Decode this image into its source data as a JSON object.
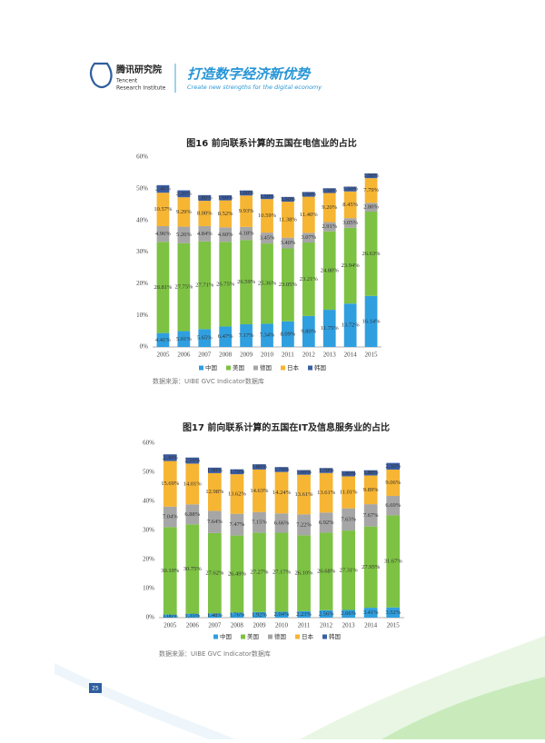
{
  "header": {
    "org_cn": "腾讯研究院",
    "org_en_1": "Tencent",
    "org_en_2": "Research Institute",
    "slogan": "打造数字经济新优势",
    "slogan_en": "Create new strengths for the digital economy"
  },
  "page_number": "25",
  "chart_data": [
    {
      "type": "stacked_bar",
      "title": "图16  前向联系计算的五国在电信业的占比",
      "note": "数据来源：UIBE GVC Indicator数据库",
      "categories": [
        "2005",
        "2006",
        "2007",
        "2008",
        "2009",
        "2010",
        "2011",
        "2012",
        "2013",
        "2014",
        "2015"
      ],
      "ylim": [
        0,
        60
      ],
      "yticks": [
        {
          "value": 0,
          "label": "0%"
        },
        {
          "value": 10,
          "label": "10%"
        },
        {
          "value": 20,
          "label": "20%"
        },
        {
          "value": 30,
          "label": "30%"
        },
        {
          "value": 40,
          "label": "40%"
        },
        {
          "value": 50,
          "label": "50%"
        },
        {
          "value": 60,
          "label": "60%"
        }
      ],
      "series": [
        {
          "name": "中国",
          "color": "#2f9fe0",
          "values": [
            4.41,
            5.01,
            5.65,
            6.47,
            7.17,
            7.34,
            8.09,
            9.8,
            11.75,
            13.72,
            16.14
          ],
          "value_labels": [
            "4.41%",
            "5.01%",
            "5.65%",
            "6.47%",
            "7.17%",
            "7.34%",
            "8.09%",
            "9.80%",
            "11.75%",
            "13.72%",
            "16.14%"
          ]
        },
        {
          "name": "美国",
          "color": "#7dc243",
          "values": [
            28.81,
            27.75,
            27.71,
            26.75,
            26.59,
            25.36,
            23.05,
            23.21,
            24.8,
            23.94,
            26.63
          ],
          "value_labels": [
            "28.81%",
            "27.75%",
            "27.71%",
            "26.75%",
            "26.59%",
            "25.36%",
            "23.05%",
            "23.21%",
            "24.80%",
            "23.94%",
            "26.63%"
          ]
        },
        {
          "name": "德国",
          "color": "#a6a6a6",
          "values": [
            4.96,
            5.26,
            4.84,
            4.6,
            4.18,
            3.45,
            3.4,
            3.07,
            2.91,
            3.05,
            2.8
          ],
          "value_labels": [
            "4.96%",
            "5.26%",
            "4.84%",
            "4.60%",
            "4.18%",
            "3.45%",
            "3.40%",
            "3.07%",
            "2.91%",
            "3.05%",
            "2.80%"
          ]
        },
        {
          "name": "日本",
          "color": "#f6b533",
          "values": [
            10.57,
            9.29,
            8.0,
            8.52,
            9.93,
            10.59,
            11.38,
            11.4,
            9.2,
            8.45,
            7.79
          ],
          "value_labels": [
            "10.57%",
            "9.29%",
            "8.00%",
            "8.52%",
            "9.93%",
            "10.59%",
            "11.38%",
            "11.40%",
            "9.20%",
            "8.45%",
            "7.79%"
          ]
        },
        {
          "name": "韩国",
          "color": "#3b5ea4",
          "values": [
            2.4,
            2.2,
            1.8,
            1.6,
            1.6,
            1.5,
            1.5,
            1.5,
            1.5,
            1.5,
            1.5
          ],
          "value_labels": [
            "2.40%",
            "2.20%",
            "1.80%",
            "1.60%",
            "1.60%",
            "1.50%",
            "1.50%",
            "1.50%",
            "1.50%",
            "1.50%",
            "1.50%"
          ]
        }
      ]
    },
    {
      "type": "stacked_bar",
      "title": "图17  前向联系计算的五国在IT及信息服务业的占比",
      "note": "数据来源：UIBE GVC Indicator数据库",
      "categories": [
        "2005",
        "2006",
        "2007",
        "2008",
        "2009",
        "2010",
        "2011",
        "2012",
        "2013",
        "2014",
        "2015"
      ],
      "ylim": [
        0,
        60
      ],
      "yticks": [
        {
          "value": 0,
          "label": "0%"
        },
        {
          "value": 10,
          "label": "10%"
        },
        {
          "value": 20,
          "label": "20%"
        },
        {
          "value": 30,
          "label": "30%"
        },
        {
          "value": 40,
          "label": "40%"
        },
        {
          "value": 50,
          "label": "50%"
        },
        {
          "value": 60,
          "label": "60%"
        }
      ],
      "series": [
        {
          "name": "中国",
          "color": "#2f9fe0",
          "values": [
            1.06,
            1.35,
            1.48,
            1.76,
            1.92,
            2.04,
            2.23,
            2.56,
            2.66,
            3.41,
            3.52
          ],
          "value_labels": [
            "1.06%",
            "1.35%",
            "1.48%",
            "1.76%",
            "1.92%",
            "2.04%",
            "2.23%",
            "2.56%",
            "2.66%",
            "3.41%",
            "3.52%"
          ]
        },
        {
          "name": "美国",
          "color": "#7dc243",
          "values": [
            30.1,
            30.75,
            27.62,
            26.49,
            27.27,
            27.17,
            26.1,
            26.68,
            27.31,
            27.95,
            31.67
          ],
          "value_labels": [
            "30.10%",
            "30.75%",
            "27.62%",
            "26.49%",
            "27.27%",
            "27.17%",
            "26.10%",
            "26.68%",
            "27.31%",
            "27.95%",
            "31.67%"
          ]
        },
        {
          "name": "德国",
          "color": "#a6a6a6",
          "values": [
            7.04,
            6.88,
            7.64,
            7.47,
            7.15,
            6.66,
            7.22,
            6.92,
            7.63,
            7.67,
            6.69
          ],
          "value_labels": [
            "7.04%",
            "6.88%",
            "7.64%",
            "7.47%",
            "7.15%",
            "6.66%",
            "7.22%",
            "6.92%",
            "7.63%",
            "7.67%",
            "6.69%"
          ]
        },
        {
          "name": "日本",
          "color": "#f6b533",
          "values": [
            15.69,
            14.01,
            12.98,
            13.62,
            14.63,
            14.24,
            13.61,
            13.61,
            11.01,
            9.89,
            9.06
          ],
          "value_labels": [
            "15.69%",
            "14.01%",
            "12.98%",
            "13.62%",
            "14.63%",
            "14.24%",
            "13.61%",
            "13.61%",
            "11.01%",
            "9.89%",
            "9.06%"
          ]
        },
        {
          "name": "韩国",
          "color": "#3b5ea4",
          "values": [
            2.3,
            2.1,
            1.9,
            1.7,
            1.8,
            1.7,
            1.6,
            1.7,
            1.8,
            1.8,
            2.3
          ],
          "value_labels": [
            "2.30%",
            "2.10%",
            "1.90%",
            "1.70%",
            "1.80%",
            "1.70%",
            "1.60%",
            "1.70%",
            "1.80%",
            "1.80%",
            "2.30%"
          ]
        }
      ]
    }
  ]
}
